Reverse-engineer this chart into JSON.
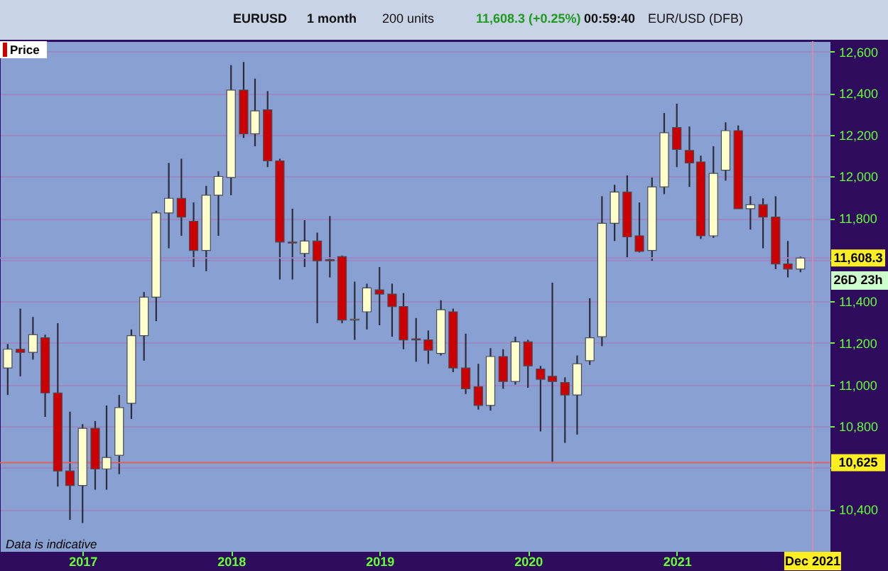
{
  "chart_data": {
    "type": "candlestick",
    "x": [
      "2016-07",
      "2016-08",
      "2016-09",
      "2016-10",
      "2016-11",
      "2016-12",
      "2017-01",
      "2017-02",
      "2017-03",
      "2017-04",
      "2017-05",
      "2017-06",
      "2017-07",
      "2017-08",
      "2017-09",
      "2017-10",
      "2017-11",
      "2017-12",
      "2018-01",
      "2018-02",
      "2018-03",
      "2018-04",
      "2018-05",
      "2018-06",
      "2018-07",
      "2018-08",
      "2018-09",
      "2018-10",
      "2018-11",
      "2018-12",
      "2019-01",
      "2019-02",
      "2019-03",
      "2019-04",
      "2019-05",
      "2019-06",
      "2019-07",
      "2019-08",
      "2019-09",
      "2019-10",
      "2019-11",
      "2019-12",
      "2020-01",
      "2020-02",
      "2020-03",
      "2020-04",
      "2020-05",
      "2020-06",
      "2020-07",
      "2020-08",
      "2020-09",
      "2020-10",
      "2020-11",
      "2020-12",
      "2021-01",
      "2021-02",
      "2021-03",
      "2021-04",
      "2021-05",
      "2021-06",
      "2021-07",
      "2021-08",
      "2021-09",
      "2021-10",
      "2021-11"
    ],
    "series": [
      {
        "name": "Price",
        "color": "#cc0000",
        "colors": [
          "#ffffcc",
          "#cc0000",
          "#ffffcc",
          "#cc0000",
          "#cc0000",
          "#cc0000",
          "#ffffcc",
          "#cc0000",
          "#ffffcc",
          "#ffffcc",
          "#ffffcc",
          "#ffffcc",
          "#ffffcc",
          "#ffffcc",
          "#cc0000",
          "#cc0000",
          "#ffffcc",
          "#ffffcc",
          "#ffffcc",
          "#cc0000",
          "#ffffcc",
          "#cc0000",
          "#cc0000",
          "#cc0000",
          "#ffffcc",
          "#cc0000",
          "#cc0000",
          "#cc0000",
          "#ffffcc",
          "#ffffcc",
          "#cc0000",
          "#cc0000",
          "#cc0000",
          "#cc0000",
          "#cc0000",
          "#ffffcc",
          "#cc0000",
          "#cc0000",
          "#cc0000",
          "#ffffcc",
          "#cc0000",
          "#ffffcc",
          "#cc0000",
          "#cc0000",
          "#cc0000",
          "#cc0000",
          "#ffffcc",
          "#ffffcc",
          "#ffffcc",
          "#ffffcc",
          "#cc0000",
          "#cc0000",
          "#ffffcc",
          "#ffffcc",
          "#cc0000",
          "#cc0000",
          "#cc0000",
          "#ffffcc",
          "#ffffcc",
          "#cc0000",
          "#ffffcc",
          "#cc0000",
          "#cc0000",
          "#cc0000",
          "#ffffcc"
        ],
        "ohlc": [
          [
            11080,
            11195,
            10950,
            11170
          ],
          [
            11170,
            11365,
            11040,
            11155
          ],
          [
            11155,
            11325,
            11120,
            11240
          ],
          [
            11225,
            11240,
            10845,
            10960
          ],
          [
            10960,
            11295,
            10510,
            10585
          ],
          [
            10585,
            10870,
            10350,
            10515
          ],
          [
            10515,
            10810,
            10335,
            10790
          ],
          [
            10790,
            10825,
            10495,
            10595
          ],
          [
            10595,
            10900,
            10495,
            10650
          ],
          [
            10660,
            10950,
            10570,
            10890
          ],
          [
            10910,
            11265,
            10835,
            11235
          ],
          [
            11235,
            11445,
            11115,
            11420
          ],
          [
            11420,
            11835,
            11305,
            11825
          ],
          [
            11825,
            12065,
            11655,
            11895
          ],
          [
            11895,
            12085,
            11715,
            11805
          ],
          [
            11785,
            11875,
            11565,
            11645
          ],
          [
            11645,
            11955,
            11545,
            11910
          ],
          [
            11910,
            12025,
            11715,
            12000
          ],
          [
            11995,
            12535,
            11910,
            12415
          ],
          [
            12415,
            12550,
            12185,
            12205
          ],
          [
            12205,
            12470,
            12145,
            12315
          ],
          [
            12320,
            12410,
            12045,
            12075
          ],
          [
            12075,
            12085,
            11505,
            11685
          ],
          [
            11685,
            11845,
            11505,
            11680
          ],
          [
            11630,
            11790,
            11565,
            11690
          ],
          [
            11690,
            11730,
            11295,
            11595
          ],
          [
            11600,
            11810,
            11515,
            11595
          ],
          [
            11615,
            11620,
            11295,
            11310
          ],
          [
            11310,
            11495,
            11215,
            11315
          ],
          [
            11350,
            11485,
            11265,
            11465
          ],
          [
            11455,
            11565,
            11285,
            11435
          ],
          [
            11435,
            11485,
            11230,
            11375
          ],
          [
            11375,
            11440,
            11170,
            11215
          ],
          [
            11220,
            11320,
            11110,
            11215
          ],
          [
            11215,
            11260,
            11100,
            11165
          ],
          [
            11150,
            11405,
            11140,
            11360
          ],
          [
            11350,
            11365,
            11060,
            11080
          ],
          [
            11080,
            11245,
            10955,
            10980
          ],
          [
            10990,
            11100,
            10880,
            10900
          ],
          [
            10900,
            11175,
            10875,
            11135
          ],
          [
            11135,
            11170,
            10980,
            11015
          ],
          [
            11015,
            11230,
            11000,
            11205
          ],
          [
            11205,
            11215,
            10985,
            11090
          ],
          [
            11075,
            11090,
            10775,
            11025
          ],
          [
            11040,
            11490,
            10630,
            11015
          ],
          [
            11010,
            11035,
            10720,
            10950
          ],
          [
            10950,
            11140,
            10760,
            11100
          ],
          [
            11115,
            11415,
            11095,
            11225
          ],
          [
            11230,
            11905,
            11185,
            11775
          ],
          [
            11775,
            11960,
            11690,
            11925
          ],
          [
            11925,
            12005,
            11610,
            11710
          ],
          [
            11715,
            11875,
            11635,
            11640
          ],
          [
            11645,
            11995,
            11595,
            11950
          ],
          [
            11950,
            12305,
            11915,
            12210
          ],
          [
            12235,
            12350,
            12045,
            12130
          ],
          [
            12125,
            12240,
            11950,
            12065
          ],
          [
            12070,
            12100,
            11700,
            11715
          ],
          [
            11715,
            12145,
            11705,
            12015
          ],
          [
            12030,
            12260,
            11980,
            12220
          ],
          [
            12220,
            12245,
            11845,
            11845
          ],
          [
            11845,
            11905,
            11745,
            11865
          ],
          [
            11865,
            11895,
            11655,
            11805
          ],
          [
            11805,
            11905,
            11555,
            11580
          ],
          [
            11580,
            11690,
            11515,
            11555
          ],
          [
            11555,
            11615,
            11540,
            11608.3
          ]
        ]
      }
    ],
    "xlim": [
      "2016-06-12",
      "2022-01-12"
    ],
    "xticks": [
      "2017",
      "2018",
      "2019",
      "2020",
      "2021"
    ],
    "ylim": [
      10200,
      12650
    ],
    "yticks": [
      {
        "value": 10400,
        "label": "10,400"
      },
      {
        "value": 10600,
        "label": null
      },
      {
        "value": 10800,
        "label": "10,800"
      },
      {
        "value": 11000,
        "label": "11,000"
      },
      {
        "value": 11200,
        "label": "11,200"
      },
      {
        "value": 11400,
        "label": "11,400"
      },
      {
        "value": 11600,
        "label": null
      },
      {
        "value": 11800,
        "label": "11,800"
      },
      {
        "value": 12000,
        "label": "12,000"
      },
      {
        "value": 12200,
        "label": "12,200"
      },
      {
        "value": 12400,
        "label": "12,400"
      },
      {
        "value": 12600,
        "label": "12,600"
      }
    ],
    "ref_lines": [
      {
        "axis": "y",
        "value": 11608.3,
        "label": "11,608.3",
        "color": "#9a88c4"
      },
      {
        "axis": "y",
        "value": 10625,
        "label": "10,625",
        "color": "#e0605a"
      },
      {
        "axis": "x",
        "value": "2021-12",
        "label": "Dec 2021",
        "color": "#d98aa6"
      }
    ],
    "annotations": [
      "EURUSD",
      "1 month",
      "200 units",
      "11,608.3 (+0.25%)",
      "00:59:40",
      "EUR/USD (DFB)",
      "Data is indicative",
      "26D 23h"
    ],
    "grid": "y",
    "legend": "top left"
  }
}
